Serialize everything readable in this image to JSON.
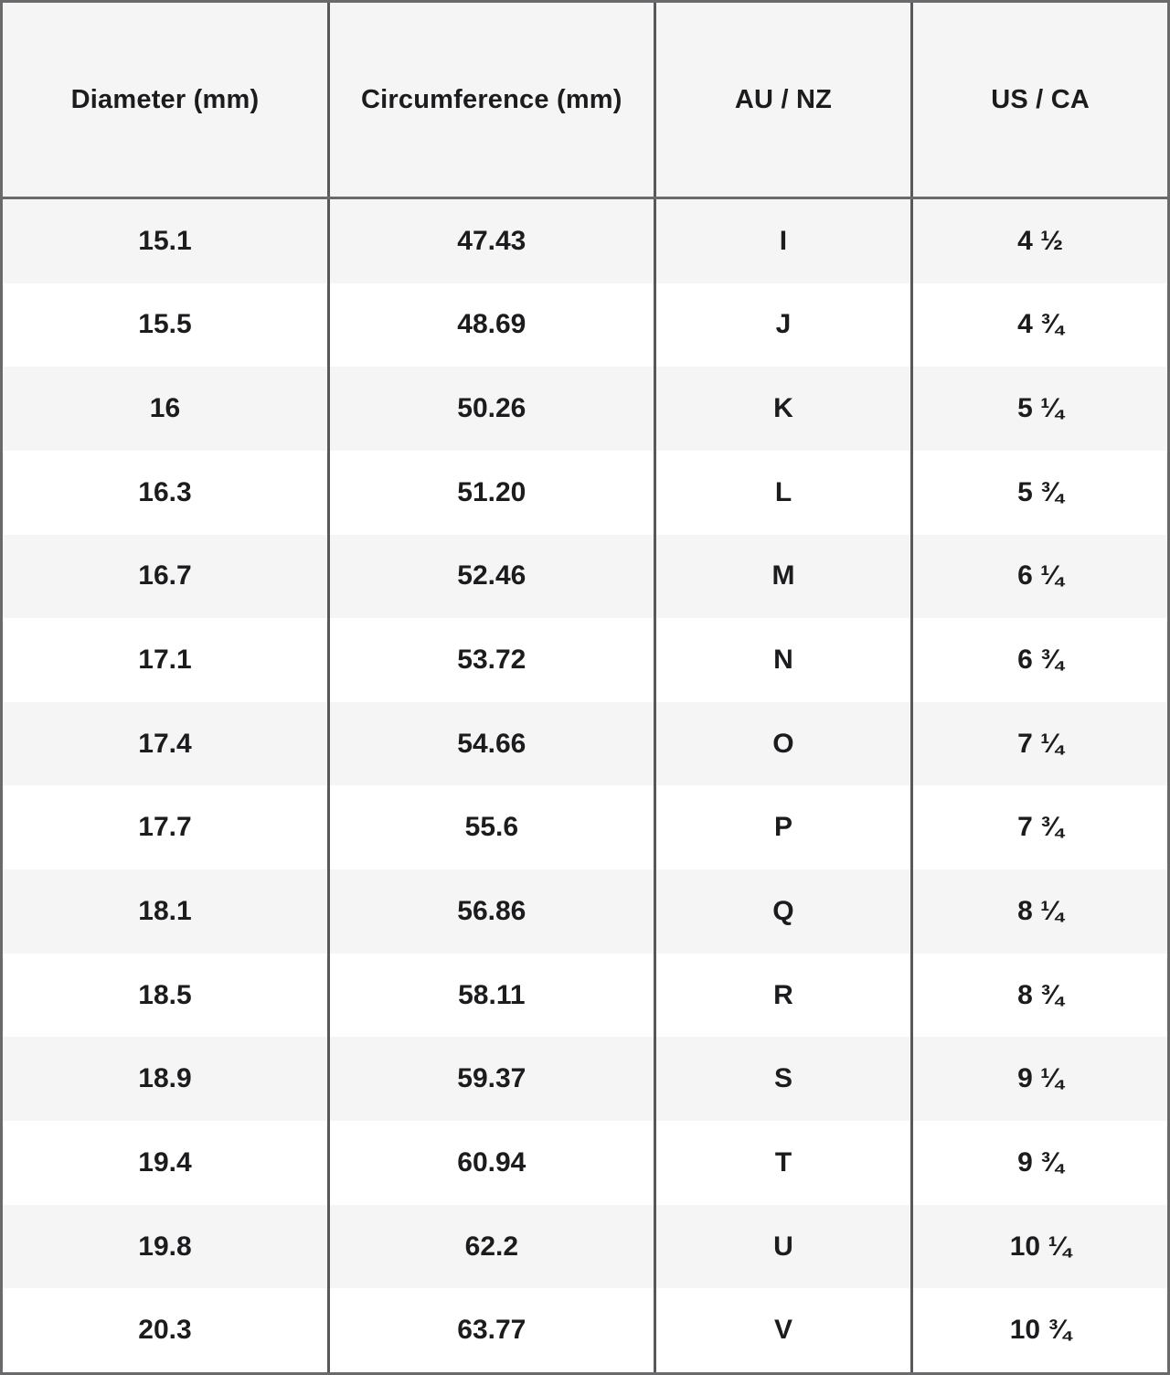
{
  "chart_data": {
    "type": "table",
    "columns": [
      "Diameter (mm)",
      "Circumference (mm)",
      "AU / NZ",
      "US / CA"
    ],
    "rows": [
      [
        "15.1",
        "47.43",
        "I",
        "4 ½"
      ],
      [
        "15.5",
        "48.69",
        "J",
        "4 ¾"
      ],
      [
        "16",
        "50.26",
        "K",
        "5 ¼"
      ],
      [
        "16.3",
        "51.20",
        "L",
        "5 ¾"
      ],
      [
        "16.7",
        "52.46",
        "M",
        "6 ¼"
      ],
      [
        "17.1",
        "53.72",
        "N",
        "6 ¾"
      ],
      [
        "17.4",
        "54.66",
        "O",
        "7 ¼"
      ],
      [
        "17.7",
        "55.6",
        "P",
        "7 ¾"
      ],
      [
        "18.1",
        "56.86",
        "Q",
        "8 ¼"
      ],
      [
        "18.5",
        "58.11",
        "R",
        "8 ¾"
      ],
      [
        "18.9",
        "59.37",
        "S",
        "9 ¼"
      ],
      [
        "19.4",
        "60.94",
        "T",
        "9 ¾"
      ],
      [
        "19.8",
        "62.2",
        "U",
        "10 ¼"
      ],
      [
        "20.3",
        "63.77",
        "V",
        "10 ¾"
      ]
    ],
    "layout": {
      "grid": "vertical-separators-only",
      "alternating_rows": true
    }
  },
  "colors": {
    "header_bg": "#f5f5f5",
    "row_bg": "#ffffff",
    "row_alt_bg": "#f5f5f6",
    "border_outer": "#6a6a6c",
    "border_column": "#58585a",
    "text": "#1c1c1e"
  }
}
